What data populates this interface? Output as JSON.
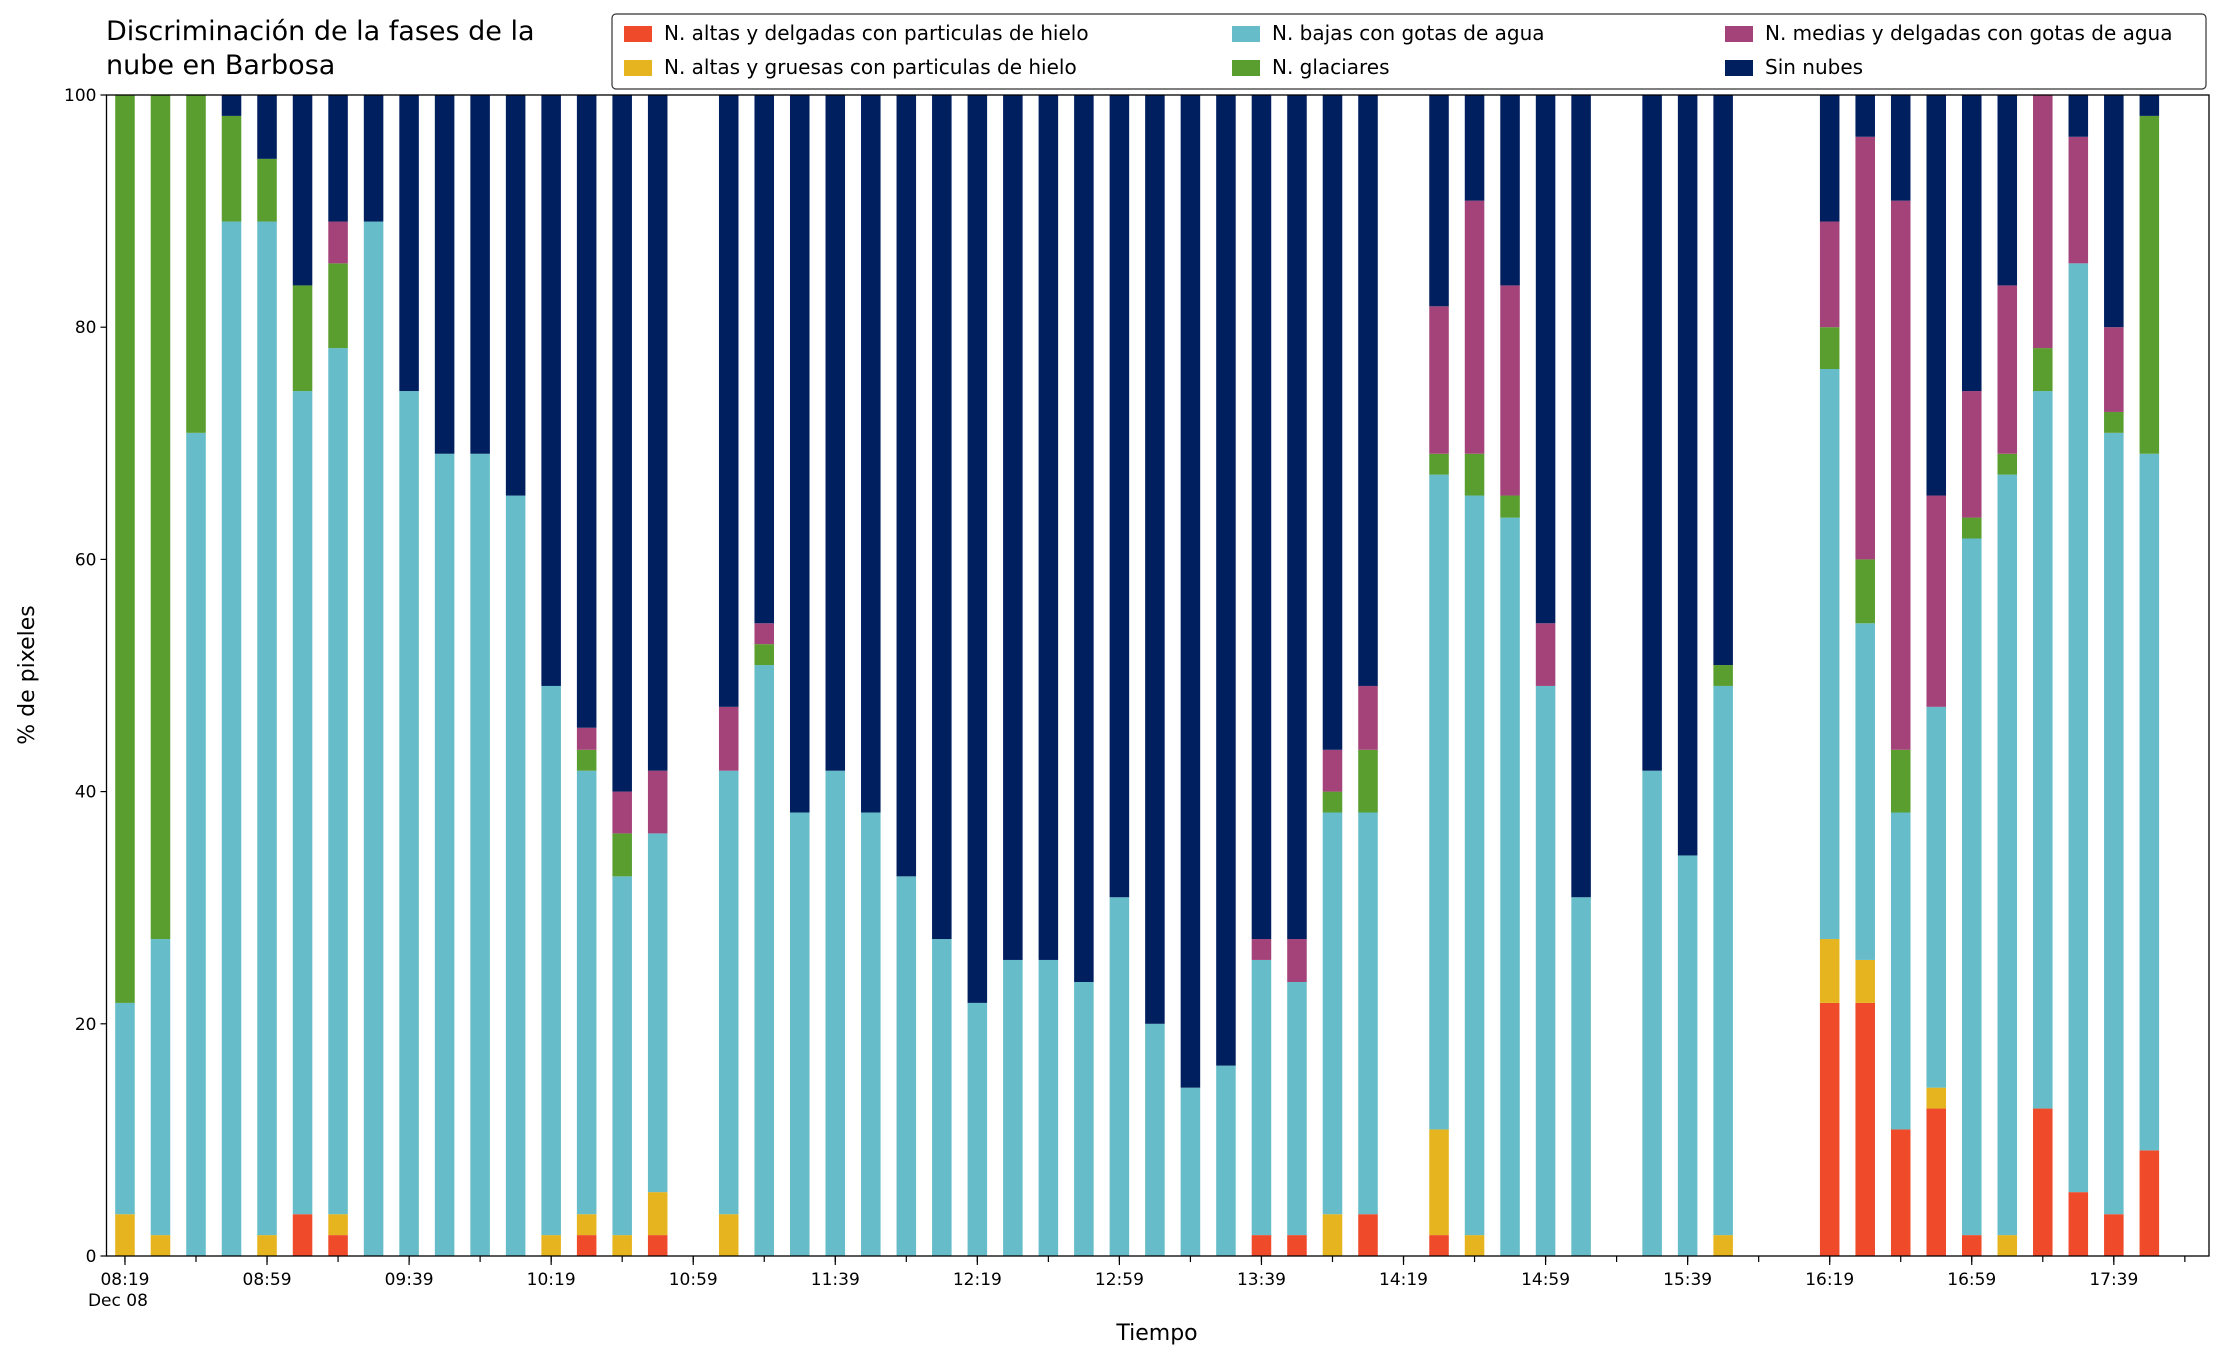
{
  "chart_data": {
    "type": "stacked_bar",
    "title": [
      "Discriminación de la fases de la",
      "nube en Barbosa"
    ],
    "xlabel": "Tiempo",
    "ylabel": "% de pixeles",
    "categories": [
      "08:19",
      null,
      null,
      null,
      "08:59",
      null,
      null,
      null,
      "09:39",
      null,
      null,
      null,
      "10:19",
      null,
      null,
      null,
      "10:59",
      null,
      null,
      null,
      "11:39",
      null,
      null,
      null,
      "12:19",
      null,
      null,
      null,
      "12:59",
      null,
      null,
      null,
      "13:39",
      null,
      null,
      null,
      "14:19",
      null,
      null,
      null,
      "14:59",
      null,
      null,
      null,
      "15:39",
      null,
      null,
      null,
      "16:19",
      null,
      null,
      null,
      "16:59",
      null,
      null,
      null,
      "17:39",
      null
    ],
    "x_sublabel": "Dec 08",
    "ylim": [
      0,
      100
    ],
    "yticks": [
      0,
      20,
      40,
      60,
      80,
      100
    ],
    "legend": "upper right",
    "series": [
      {
        "name": "N. altas y delgadas con particulas de hielo",
        "color": "#ef4b2b",
        "values": [
          0,
          0,
          0,
          0,
          0,
          3.6,
          1.8,
          0,
          0,
          0,
          0,
          0,
          0,
          1.8,
          0,
          1.8,
          null,
          0,
          0,
          0,
          0,
          0,
          0,
          0,
          0,
          0,
          0,
          0,
          0,
          0,
          0,
          0,
          1.8,
          1.8,
          0,
          3.6,
          null,
          1.8,
          0,
          0,
          0,
          0,
          null,
          0,
          0,
          0,
          null,
          null,
          21.8,
          21.8,
          10.9,
          12.7,
          1.8,
          0,
          12.7,
          5.5,
          3.6,
          9.1
        ]
      },
      {
        "name": "N. altas y gruesas con particulas de hielo",
        "color": "#e6b41e",
        "values": [
          3.6,
          1.8,
          0,
          0,
          1.8,
          0,
          1.8,
          0,
          0,
          0,
          0,
          0,
          1.8,
          1.8,
          1.8,
          3.7,
          null,
          3.6,
          0,
          0,
          0,
          0,
          0,
          0,
          0,
          0,
          0,
          0,
          0,
          0,
          0,
          0,
          0,
          0,
          3.6,
          0,
          null,
          9.1,
          1.8,
          0,
          0,
          0,
          null,
          0,
          0,
          1.8,
          null,
          null,
          5.5,
          3.7,
          0,
          1.8,
          0,
          1.8,
          0,
          0,
          0,
          0
        ]
      },
      {
        "name": "N. bajas con gotas de agua",
        "color": "#66bdc9",
        "values": [
          18.2,
          25.5,
          70.9,
          89.1,
          87.3,
          70.9,
          74.6,
          89.1,
          74.5,
          69.1,
          69.1,
          65.5,
          47.3,
          38.2,
          30.9,
          30.9,
          null,
          38.2,
          50.9,
          38.2,
          41.8,
          38.2,
          32.7,
          27.3,
          21.8,
          25.5,
          25.5,
          23.6,
          30.9,
          20,
          14.5,
          16.4,
          23.7,
          21.8,
          34.6,
          34.6,
          null,
          56.4,
          63.7,
          63.6,
          49.1,
          30.9,
          null,
          41.8,
          34.5,
          47.3,
          null,
          null,
          49.1,
          29,
          27.3,
          32.8,
          60,
          65.5,
          61.8,
          80,
          67.3,
          60
        ]
      },
      {
        "name": "N. glaciares",
        "color": "#5a9e2f",
        "values": [
          78.2,
          72.7,
          29.1,
          9.1,
          5.4,
          9.1,
          7.3,
          0,
          0,
          0,
          0,
          0,
          0,
          1.8,
          3.7,
          0,
          null,
          0,
          1.8,
          0,
          0,
          0,
          0,
          0,
          0,
          0,
          0,
          0,
          0,
          0,
          0,
          0,
          0,
          0,
          1.8,
          5.4,
          null,
          1.8,
          3.6,
          1.9,
          0,
          0,
          null,
          0,
          0,
          1.8,
          null,
          null,
          3.6,
          5.5,
          5.4,
          0,
          1.8,
          1.8,
          3.7,
          0,
          1.8,
          29.1
        ]
      },
      {
        "name": "N. medias y delgadas con gotas de agua",
        "color": "#a4437a",
        "values": [
          0,
          0,
          0,
          0,
          0,
          0,
          3.6,
          0,
          0,
          0,
          0,
          0,
          0,
          1.9,
          3.6,
          5.4,
          null,
          5.5,
          1.8,
          0,
          0,
          0,
          0,
          0,
          0,
          0,
          0,
          0,
          0,
          0,
          0,
          0,
          1.8,
          3.7,
          3.6,
          5.5,
          null,
          12.7,
          21.8,
          18.1,
          5.4,
          0,
          null,
          0,
          0,
          0,
          null,
          null,
          9.1,
          36.4,
          47.3,
          18.2,
          10.9,
          14.5,
          21.8,
          10.9,
          7.3,
          0
        ]
      },
      {
        "name": "Sin nubes",
        "color": "#001f5f",
        "values": [
          0,
          0,
          0,
          1.8,
          5.5,
          16.4,
          10.9,
          10.9,
          25.5,
          30.9,
          30.9,
          34.5,
          50.9,
          54.5,
          60,
          58.2,
          null,
          52.7,
          45.5,
          61.8,
          58.2,
          61.8,
          67.3,
          72.7,
          78.2,
          74.5,
          74.5,
          76.4,
          69.1,
          80,
          85.5,
          83.6,
          72.7,
          72.7,
          56.4,
          50.9,
          null,
          18.2,
          9.1,
          16.4,
          45.5,
          69.1,
          null,
          58.2,
          65.5,
          49.1,
          null,
          null,
          10.9,
          3.6,
          9.1,
          34.5,
          25.5,
          16.4,
          0,
          3.6,
          20,
          1.8
        ]
      }
    ]
  }
}
